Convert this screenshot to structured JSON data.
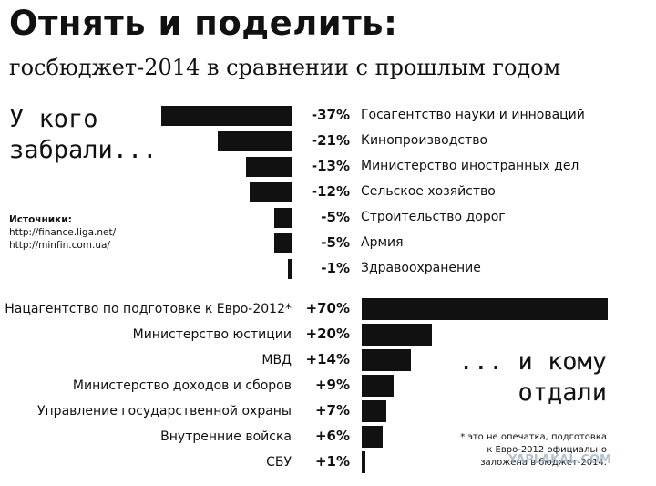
{
  "header": {
    "title": "Отнять и поделить:",
    "subtitle": "госбюджет-2014 в сравнении с прошлым годом"
  },
  "labels": {
    "taken_line1": "У кого",
    "taken_line2": "забрали...",
    "given_line1": "... и кому",
    "given_line2": "отдали"
  },
  "sources": {
    "heading": "Источники:",
    "links": [
      "http://finance.liga.net/",
      "http://minfin.com.ua/"
    ]
  },
  "note": {
    "line1": "* это не опечатка, подготовка",
    "line2": "к Евро-2012 официально",
    "line3": "заложена в бюджет-2014."
  },
  "watermark": "YAPLAKAL.COM",
  "chart_data": [
    {
      "type": "bar",
      "orientation": "horizontal",
      "categories": [
        "Госагентство науки и инноваций",
        "Кинопроизводство",
        "Министерство иностранных дел",
        "Сельское хозяйство",
        "Строительство дорог",
        "Армия",
        "Здравоохранение"
      ],
      "values": [
        -37,
        -21,
        -13,
        -12,
        -5,
        -5,
        -1
      ],
      "value_labels": [
        "-37%",
        "-21%",
        "-13%",
        "-12%",
        "-5%",
        "-5%",
        "-1%"
      ]
    },
    {
      "type": "bar",
      "orientation": "horizontal",
      "categories": [
        "Нацагентство по подготовке к Евро-2012*",
        "Министерство юстиции",
        "МВД",
        "Министерство доходов и сборов",
        "Управление государственной охраны",
        "Внутренние войска",
        "СБУ"
      ],
      "values": [
        70,
        20,
        14,
        9,
        7,
        6,
        1
      ],
      "value_labels": [
        "+70%",
        "+20%",
        "+14%",
        "+9%",
        "+7%",
        "+6%",
        "+1%"
      ]
    }
  ]
}
